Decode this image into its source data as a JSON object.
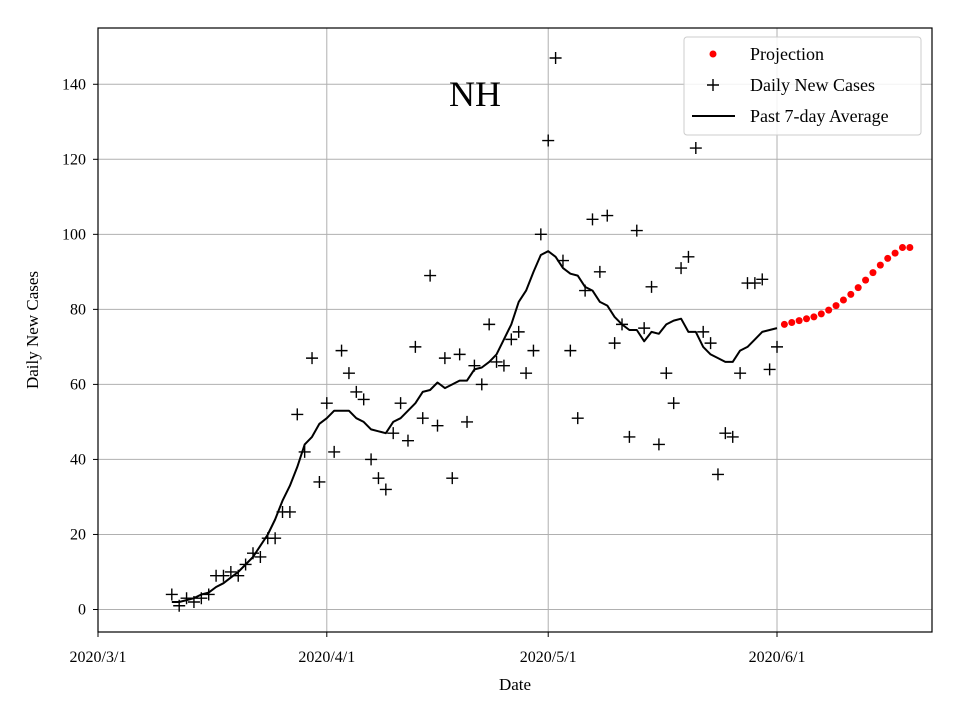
{
  "chart_data": {
    "type": "scatter",
    "title": "NH",
    "xlabel": "Date",
    "ylabel": "Daily New Cases",
    "xlim": [
      "2020-03-01",
      "2020-06-22"
    ],
    "ylim": [
      -6,
      155
    ],
    "grid": true,
    "legend_position": "top-right",
    "x_ticks": [
      "2020-03-01",
      "2020-04-01",
      "2020-05-01",
      "2020-06-01"
    ],
    "x_tick_labels": [
      "2020/3/1",
      "2020/4/1",
      "2020/5/1",
      "2020/6/1"
    ],
    "y_ticks": [
      0,
      20,
      40,
      60,
      80,
      100,
      120,
      140
    ],
    "y_tick_labels": [
      "0",
      "20",
      "40",
      "60",
      "80",
      "100",
      "120",
      "140"
    ],
    "series": [
      {
        "name": "Daily New Cases",
        "kind": "scatter",
        "marker": "plus",
        "color": "#000000",
        "x": [
          "2020-03-11",
          "2020-03-12",
          "2020-03-13",
          "2020-03-14",
          "2020-03-15",
          "2020-03-16",
          "2020-03-17",
          "2020-03-18",
          "2020-03-19",
          "2020-03-20",
          "2020-03-21",
          "2020-03-22",
          "2020-03-23",
          "2020-03-24",
          "2020-03-25",
          "2020-03-26",
          "2020-03-27",
          "2020-03-28",
          "2020-03-29",
          "2020-03-30",
          "2020-03-31",
          "2020-04-01",
          "2020-04-02",
          "2020-04-03",
          "2020-04-04",
          "2020-04-05",
          "2020-04-06",
          "2020-04-07",
          "2020-04-08",
          "2020-04-09",
          "2020-04-10",
          "2020-04-11",
          "2020-04-12",
          "2020-04-13",
          "2020-04-14",
          "2020-04-15",
          "2020-04-16",
          "2020-04-17",
          "2020-04-18",
          "2020-04-19",
          "2020-04-20",
          "2020-04-21",
          "2020-04-22",
          "2020-04-23",
          "2020-04-24",
          "2020-04-25",
          "2020-04-26",
          "2020-04-27",
          "2020-04-28",
          "2020-04-29",
          "2020-04-30",
          "2020-05-01",
          "2020-05-02",
          "2020-05-03",
          "2020-05-04",
          "2020-05-05",
          "2020-05-06",
          "2020-05-07",
          "2020-05-08",
          "2020-05-09",
          "2020-05-10",
          "2020-05-11",
          "2020-05-12",
          "2020-05-13",
          "2020-05-14",
          "2020-05-15",
          "2020-05-16",
          "2020-05-17",
          "2020-05-18",
          "2020-05-19",
          "2020-05-20",
          "2020-05-21",
          "2020-05-22",
          "2020-05-23",
          "2020-05-24",
          "2020-05-25",
          "2020-05-26",
          "2020-05-27",
          "2020-05-28",
          "2020-05-29",
          "2020-05-30",
          "2020-05-31",
          "2020-06-01"
        ],
        "y": [
          4,
          1,
          3,
          2,
          3,
          4,
          9,
          9,
          10,
          9,
          12,
          15,
          14,
          19,
          19,
          26,
          26,
          52,
          42,
          67,
          34,
          55,
          42,
          69,
          63,
          58,
          56,
          40,
          35,
          32,
          47,
          55,
          45,
          70,
          51,
          89,
          49,
          67,
          35,
          68,
          50,
          65,
          60,
          76,
          66,
          65,
          72,
          74,
          63,
          69,
          100,
          125,
          147,
          93,
          69,
          51,
          85,
          104,
          90,
          105,
          71,
          76,
          46,
          101,
          75,
          86,
          44,
          63,
          55,
          91,
          94,
          123,
          74,
          71,
          36,
          47,
          46,
          63,
          87,
          87,
          88,
          64,
          70
        ]
      },
      {
        "name": "Past 7-day Average",
        "kind": "line",
        "color": "#000000",
        "x": [
          "2020-03-11",
          "2020-03-12",
          "2020-03-13",
          "2020-03-14",
          "2020-03-15",
          "2020-03-16",
          "2020-03-17",
          "2020-03-18",
          "2020-03-19",
          "2020-03-20",
          "2020-03-21",
          "2020-03-22",
          "2020-03-23",
          "2020-03-24",
          "2020-03-25",
          "2020-03-26",
          "2020-03-27",
          "2020-03-28",
          "2020-03-29",
          "2020-03-30",
          "2020-03-31",
          "2020-04-01",
          "2020-04-02",
          "2020-04-03",
          "2020-04-04",
          "2020-04-05",
          "2020-04-06",
          "2020-04-07",
          "2020-04-08",
          "2020-04-09",
          "2020-04-10",
          "2020-04-11",
          "2020-04-12",
          "2020-04-13",
          "2020-04-14",
          "2020-04-15",
          "2020-04-16",
          "2020-04-17",
          "2020-04-18",
          "2020-04-19",
          "2020-04-20",
          "2020-04-21",
          "2020-04-22",
          "2020-04-23",
          "2020-04-24",
          "2020-04-25",
          "2020-04-26",
          "2020-04-27",
          "2020-04-28",
          "2020-04-29",
          "2020-04-30",
          "2020-05-01",
          "2020-05-02",
          "2020-05-03",
          "2020-05-04",
          "2020-05-05",
          "2020-05-06",
          "2020-05-07",
          "2020-05-08",
          "2020-05-09",
          "2020-05-10",
          "2020-05-11",
          "2020-05-12",
          "2020-05-13",
          "2020-05-14",
          "2020-05-15",
          "2020-05-16",
          "2020-05-17",
          "2020-05-18",
          "2020-05-19",
          "2020-05-20",
          "2020-05-21",
          "2020-05-22",
          "2020-05-23",
          "2020-05-24",
          "2020-05-25",
          "2020-05-26",
          "2020-05-27",
          "2020-05-28",
          "2020-05-29",
          "2020-05-30",
          "2020-05-31",
          "2020-06-01"
        ],
        "y": [
          2,
          2,
          2.5,
          3,
          4,
          4.5,
          6,
          7,
          8.5,
          10,
          12,
          14,
          17,
          20,
          24,
          29,
          33,
          38,
          44,
          46,
          49.5,
          51,
          53,
          53,
          53,
          51,
          50,
          48,
          47.5,
          47,
          50,
          51,
          53,
          55,
          58,
          58.5,
          60.5,
          59,
          60,
          61,
          61,
          64,
          64.5,
          66,
          68,
          72,
          76,
          82,
          85,
          90,
          94.5,
          95.5,
          94,
          91,
          89.5,
          89,
          86,
          85,
          82,
          81,
          78,
          76,
          74.5,
          74.5,
          71.5,
          74,
          73.5,
          76,
          77,
          77.5,
          74,
          74,
          70,
          68,
          67,
          66,
          66,
          69,
          70,
          72,
          74,
          74.5,
          75
        ]
      },
      {
        "name": "Projection",
        "kind": "scatter",
        "marker": "dot",
        "color": "#ff0000",
        "x": [
          "2020-06-02",
          "2020-06-03",
          "2020-06-04",
          "2020-06-05",
          "2020-06-06",
          "2020-06-07",
          "2020-06-08",
          "2020-06-09",
          "2020-06-10",
          "2020-06-11",
          "2020-06-12",
          "2020-06-13",
          "2020-06-14",
          "2020-06-15",
          "2020-06-16",
          "2020-06-17",
          "2020-06-18",
          "2020-06-19"
        ],
        "y": [
          76,
          76.5,
          77,
          77.5,
          78,
          78.8,
          79.8,
          81,
          82.5,
          84,
          85.8,
          87.8,
          89.8,
          91.8,
          93.6,
          95,
          96.5,
          96.5
        ]
      }
    ]
  }
}
